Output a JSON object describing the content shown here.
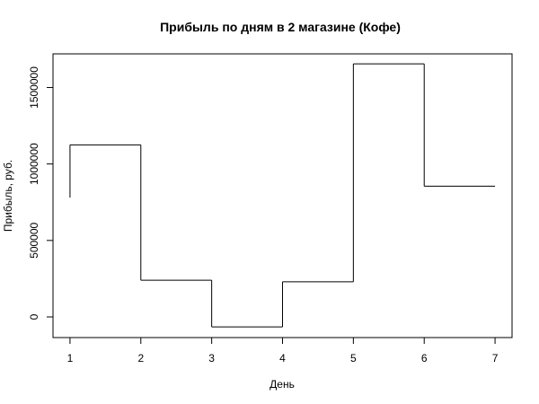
{
  "chart_data": {
    "type": "line",
    "title": "Прибыль по дням в 2 магазине (Кофе)",
    "xlabel": "День",
    "ylabel": "Прибыль, руб.",
    "x": [
      1,
      2,
      3,
      4,
      5,
      6,
      7
    ],
    "series": [
      {
        "values": [
          1125000,
          240000,
          -65000,
          230000,
          1655000,
          855000,
          855000
        ]
      }
    ],
    "start_value": 780000,
    "xlim": [
      0.76,
      7.24
    ],
    "ylim": [
      -135000,
      1720000
    ],
    "x_ticks": [
      1,
      2,
      3,
      4,
      5,
      6,
      7
    ],
    "x_tick_labels": [
      "1",
      "2",
      "3",
      "4",
      "5",
      "6",
      "7"
    ],
    "y_ticks": [
      0,
      500000,
      1000000,
      1500000
    ],
    "y_tick_labels": [
      "0",
      "500000",
      "1000000",
      "1500000"
    ],
    "grid": false,
    "legend": "none",
    "line_color": "#000000"
  }
}
